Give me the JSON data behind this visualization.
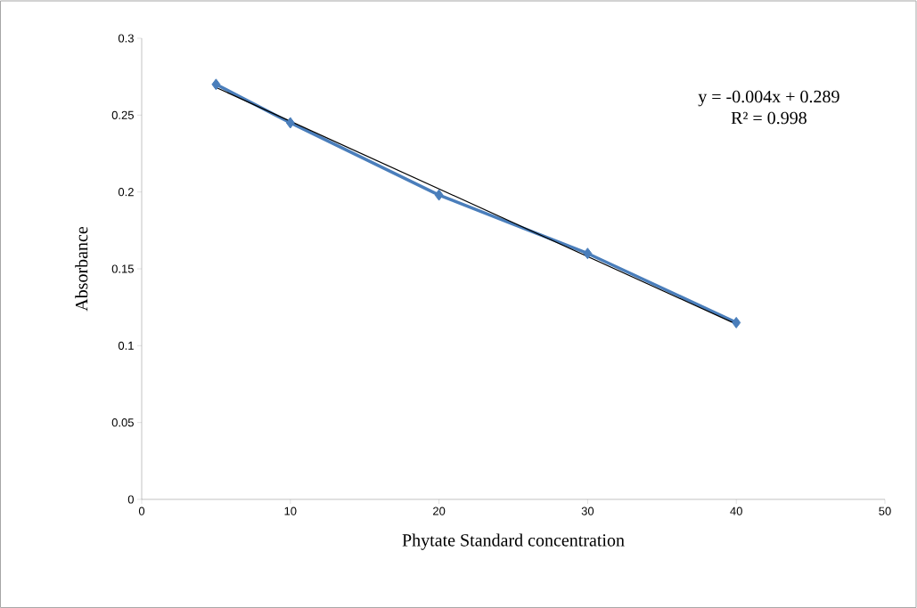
{
  "chart_data": {
    "type": "line",
    "xlabel": "Phytate Standard concentration",
    "ylabel": "Absorbance",
    "annotations": [
      "y = -0.004x + 0.289",
      "R² = 0.998"
    ],
    "xlim": [
      0,
      50
    ],
    "xticks": [
      0,
      10,
      20,
      30,
      40,
      50
    ],
    "ylim": [
      0,
      0.3
    ],
    "yticks": [
      0,
      0.05,
      0.1,
      0.15,
      0.2,
      0.25,
      0.3
    ],
    "series": [
      {
        "color": "#4a7ebb",
        "marker": "diamond",
        "x": [
          5,
          10,
          20,
          30,
          40
        ],
        "values": [
          0.27,
          0.245,
          0.198,
          0.16,
          0.115
        ]
      },
      {
        "color": "#000000",
        "marker": "none",
        "x": [
          5,
          40
        ],
        "values": [
          0.268,
          0.114
        ]
      }
    ]
  }
}
